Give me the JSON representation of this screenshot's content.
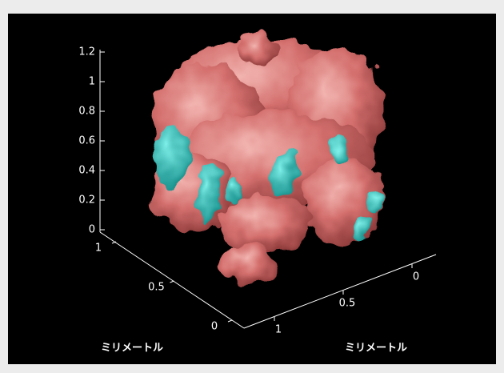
{
  "chart_data": {
    "type": "isosurface3d",
    "zlim": [
      0,
      1.2
    ],
    "zticks": [
      0,
      0.2,
      0.4,
      0.6,
      0.8,
      1,
      1.2
    ],
    "ylim": [
      0,
      1
    ],
    "yticks": [
      0,
      0.5,
      1
    ],
    "xlim": [
      0,
      1
    ],
    "xticks": [
      0,
      0.5,
      1
    ],
    "ylabel": "ミリメートル",
    "xlabel": "ミリメートル",
    "color": "#d4706e",
    "background": "#000000"
  }
}
